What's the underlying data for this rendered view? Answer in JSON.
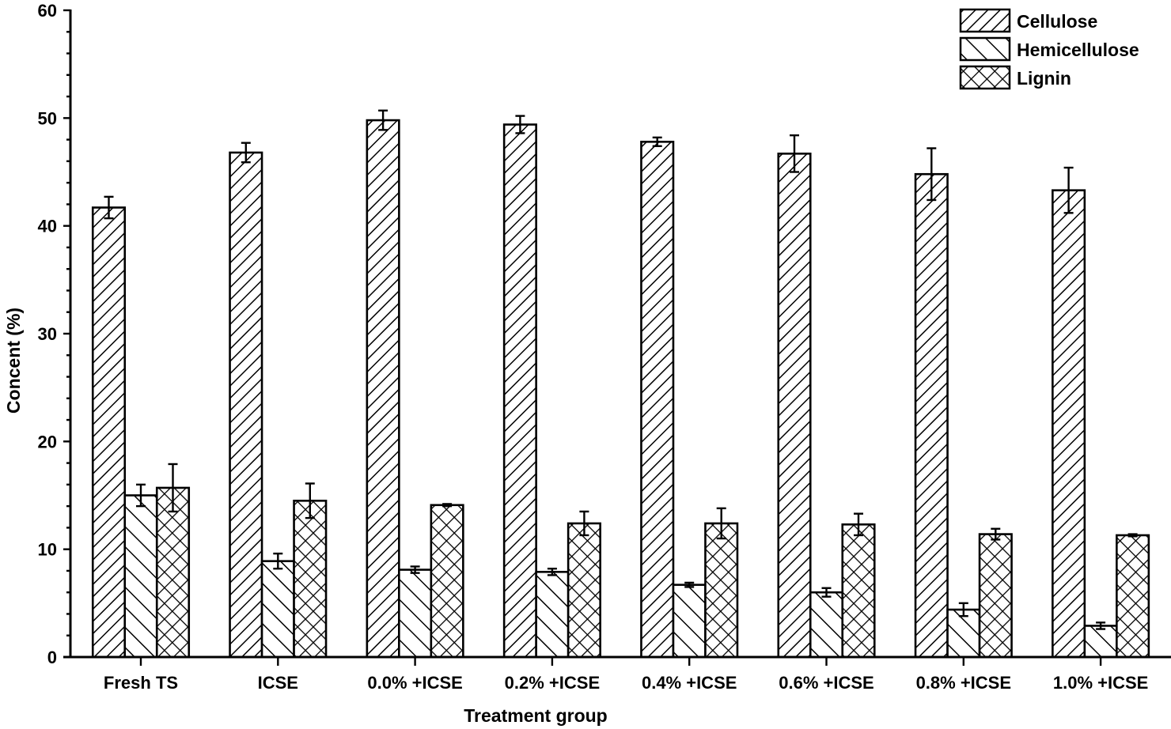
{
  "chart_data": {
    "type": "bar",
    "title": "",
    "xlabel": "Treatment group",
    "ylabel": "Concent (%)",
    "ylim": [
      0,
      60
    ],
    "yticks": [
      0,
      10,
      20,
      30,
      40,
      50,
      60
    ],
    "grid": false,
    "legend_position": "top-right",
    "categories": [
      "Fresh TS",
      "ICSE",
      "0.0% +ICSE",
      "0.2% +ICSE",
      "0.4% +ICSE",
      "0.6% +ICSE",
      "0.8% +ICSE",
      "1.0% +ICSE"
    ],
    "series": [
      {
        "name": "Cellulose",
        "pattern": "back-diagonal",
        "values": [
          41.7,
          46.8,
          49.8,
          49.4,
          47.8,
          46.7,
          44.8,
          43.3
        ],
        "errors": [
          1.0,
          0.9,
          0.9,
          0.8,
          0.4,
          1.7,
          2.4,
          2.1
        ]
      },
      {
        "name": "Hemicellulose",
        "pattern": "forward-diagonal",
        "values": [
          15.0,
          8.9,
          8.1,
          7.9,
          6.7,
          6.0,
          4.4,
          2.9
        ],
        "errors": [
          1.0,
          0.7,
          0.3,
          0.3,
          0.2,
          0.4,
          0.6,
          0.3
        ]
      },
      {
        "name": "Lignin",
        "pattern": "crosshatch",
        "values": [
          15.7,
          14.5,
          14.1,
          12.4,
          12.4,
          12.3,
          11.4,
          11.3
        ],
        "errors": [
          2.2,
          1.6,
          0.1,
          1.1,
          1.4,
          1.0,
          0.5,
          0.1
        ]
      }
    ]
  },
  "colors": {
    "ink": "#000000",
    "background": "#ffffff"
  }
}
